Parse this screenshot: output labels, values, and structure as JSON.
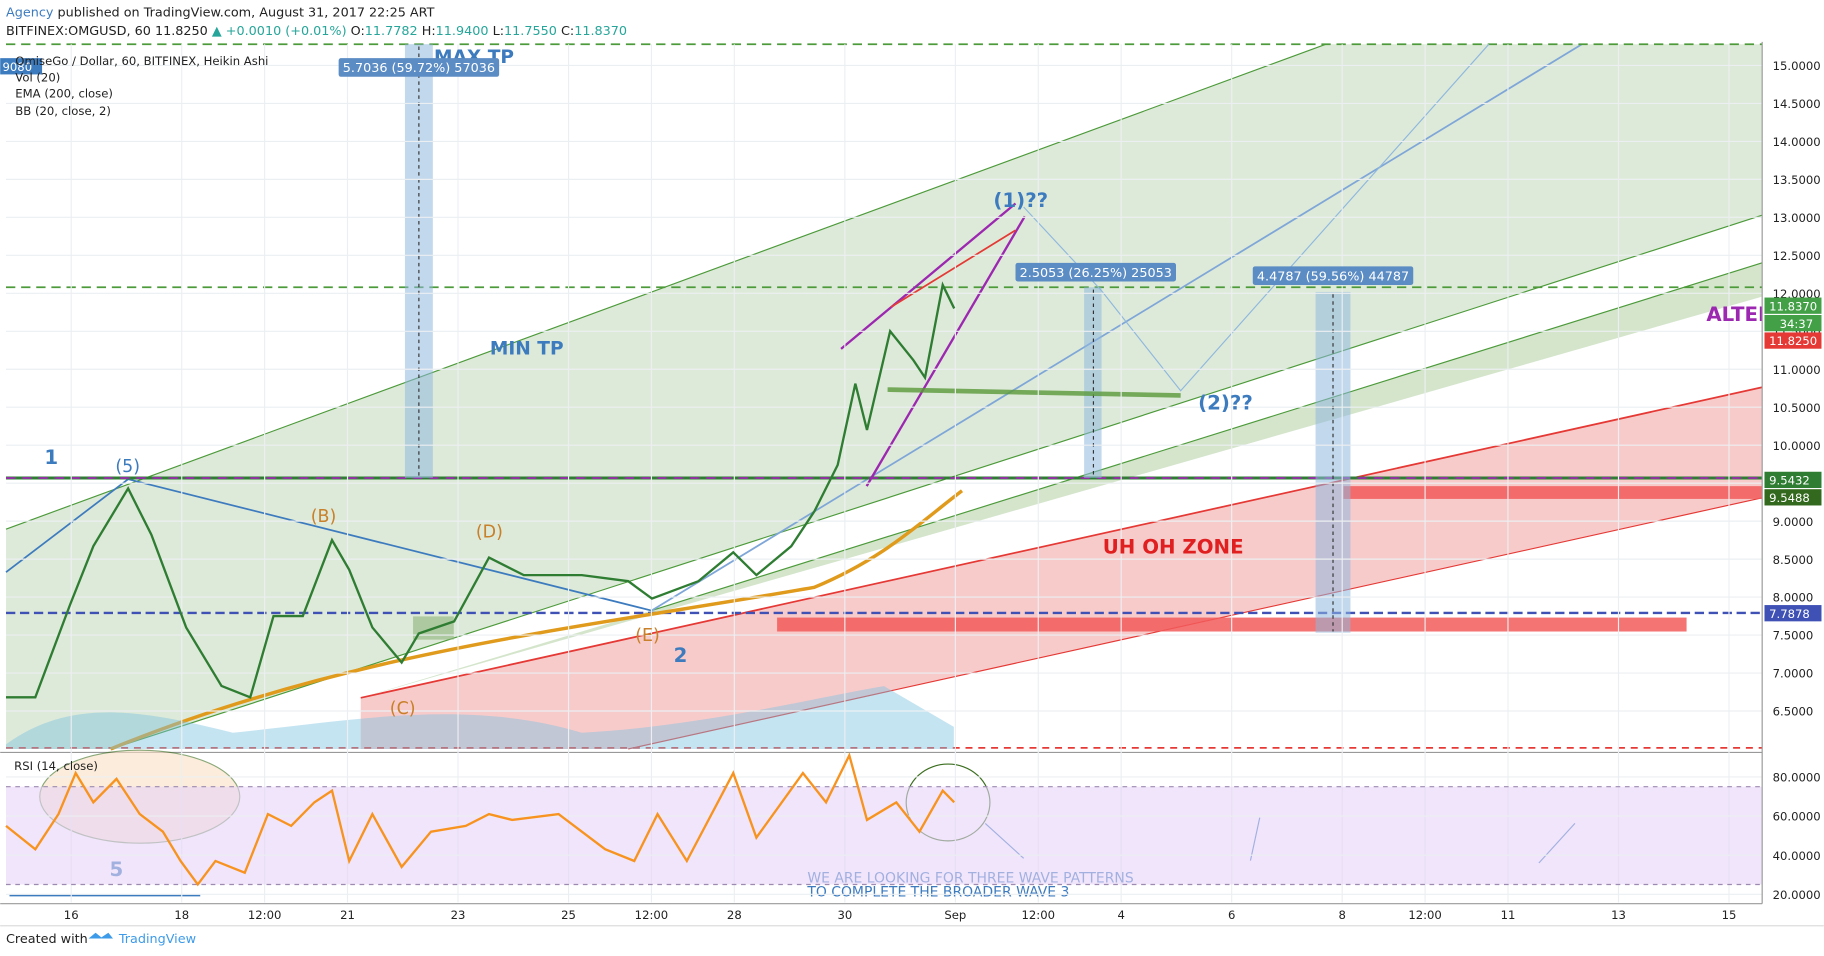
{
  "header": {
    "author": "Agency",
    "published": "published on TradingView.com, August 31, 2017 22:25 ART",
    "symbol": "BITFINEX:OMGUSD, 60",
    "last": "11.8250",
    "change": "▲ +0.0010 (+0.01%)",
    "ohlc": [
      {
        "key": "O:",
        "value": "11.7782"
      },
      {
        "key": "H:",
        "value": "11.9400"
      },
      {
        "key": "L:",
        "value": "11.7550"
      },
      {
        "key": "C:",
        "value": "11.8370"
      }
    ]
  },
  "legend_badge": "9080",
  "legend": [
    "OmiseGo / Dollar, 60, BITFINEX, Heikin Ashi",
    "Vol (20)",
    "EMA (200, close)",
    "BB (20, close, 2)"
  ],
  "chart_data": [
    {
      "type": "line",
      "color": "#2e7d32",
      "x": [
        14.82,
        15.35,
        15.98,
        16.4,
        17.03,
        17.45,
        18.08,
        18.72,
        19.24,
        19.66,
        20.19,
        20.72,
        21.03,
        21.45,
        21.98,
        22.29,
        22.93,
        23.56,
        24.19,
        25.24,
        26.08,
        26.51,
        27.35,
        27.98,
        28.4,
        29.03,
        29.45,
        29.87,
        30.19,
        30.4,
        30.82,
        31.24,
        31.45,
        31.77,
        31.98
      ],
      "values": [
        6.68,
        6.68,
        7.9,
        8.67,
        9.43,
        8.82,
        7.6,
        6.83,
        6.68,
        7.75,
        7.75,
        8.75,
        8.36,
        7.6,
        7.14,
        7.52,
        7.68,
        8.52,
        8.29,
        8.29,
        8.21,
        7.98,
        8.21,
        8.59,
        8.29,
        8.67,
        9.13,
        9.74,
        10.81,
        10.2,
        11.5,
        11.12,
        10.89,
        12.11,
        11.8
      ],
      "xlim": [
        14.82,
        46.6
      ],
      "ylim": [
        6.0,
        15.28
      ],
      "xticks": [
        16,
        18,
        {
          "value": 19.5,
          "label": "12:00"
        },
        21,
        23,
        25,
        {
          "value": 26.5,
          "label": "12:00"
        },
        28,
        30,
        {
          "value": 32,
          "label": "Sep"
        },
        {
          "value": 33.5,
          "label": "12:00"
        },
        {
          "value": 35,
          "label": "4"
        },
        {
          "value": 37,
          "label": "6"
        },
        {
          "value": 39,
          "label": "8"
        },
        {
          "value": 40.5,
          "label": "12:00"
        },
        {
          "value": 42,
          "label": "11"
        },
        {
          "value": 44,
          "label": "13"
        },
        {
          "value": 46,
          "label": "15"
        }
      ],
      "yticks": [
        {
          "value": 6.5,
          "label": "6.5000"
        },
        {
          "value": 7,
          "label": "7.0000"
        },
        {
          "value": 7.5,
          "label": "7.5000"
        },
        {
          "value": 8,
          "label": "8.0000"
        },
        {
          "value": 8.5,
          "label": "8.5000"
        },
        {
          "value": 9,
          "label": "9.0000"
        },
        {
          "value": 9.5,
          "label": "9.5000"
        },
        {
          "value": 10,
          "label": "10.0000"
        },
        {
          "value": 10.5,
          "label": "10.5000"
        },
        {
          "value": 11,
          "label": "11.0000"
        },
        {
          "value": 11.5,
          "label": "11.5000"
        },
        {
          "value": 12,
          "label": "12.0000"
        },
        {
          "value": 12.5,
          "label": "12.5000"
        },
        {
          "value": 13,
          "label": "13.0000"
        },
        {
          "value": 13.5,
          "label": "13.5000"
        },
        {
          "value": 14,
          "label": "14.0000"
        },
        {
          "value": 14.5,
          "label": "14.5000"
        },
        {
          "value": 15,
          "label": "15.0000"
        }
      ],
      "price_labels": [
        {
          "value": 11.837,
          "label": "11.8370",
          "color": "#43a047"
        },
        {
          "value": 11.825,
          "label": "11.8250",
          "color": "#e53935"
        },
        {
          "value": 9.5432,
          "label": "9.5432",
          "color": "#2e7d32"
        },
        {
          "value": 9.5488,
          "label": "9.5488",
          "color": "#33691e"
        },
        {
          "value": 7.7878,
          "label": "7.7878",
          "color": "#3f51b5"
        }
      ],
      "countdown": "34:37",
      "annotations": [
        {
          "text": "MAX TP",
          "color": "#3d7bbf"
        },
        {
          "text": "MIN TP",
          "color": "#3d7bbf"
        },
        {
          "text": "(1)??",
          "color": "#3d7bbf"
        },
        {
          "text": "(2)??",
          "color": "#3d7bbf"
        },
        {
          "text": "UH OH ZONE",
          "color": "#e02020"
        },
        {
          "text": "ALTER",
          "color": "#9c27b0"
        },
        {
          "text": "1",
          "color": "#3d7bbf"
        },
        {
          "text": "(5)",
          "color": "#3d7bbf"
        },
        {
          "text": "(B)",
          "color": "#c8802a"
        },
        {
          "text": "(D)",
          "color": "#c8802a"
        },
        {
          "text": "(C)",
          "color": "#c8802a"
        },
        {
          "text": "(E)",
          "color": "#c8802a"
        },
        {
          "text": "2",
          "color": "#3d7bbf"
        },
        {
          "text": "5",
          "color": "#3d7bbf"
        },
        {
          "text": "WE ARE LOOKING FOR THREE WAVE PATTERNS",
          "color": "#3d7bbf"
        },
        {
          "text": "TO COMPLETE THE BROADER WAVE 3",
          "color": "#3d7bbf"
        }
      ],
      "measures": [
        "5.7036 (59.72%) 57036",
        "2.5053 (26.25%) 25053",
        "4.4787 (59.56%) 44787"
      ]
    },
    {
      "type": "line",
      "title": "RSI (14, close)",
      "color": "#f7931e",
      "x": [
        14.82,
        15.35,
        15.77,
        16.08,
        16.4,
        16.82,
        17.24,
        17.66,
        17.98,
        18.29,
        18.61,
        19.14,
        19.56,
        19.98,
        20.4,
        20.72,
        21.03,
        21.45,
        21.98,
        22.51,
        23.14,
        23.56,
        23.98,
        24.82,
        25.66,
        26.19,
        26.61,
        27.14,
        27.98,
        28.4,
        29.24,
        29.66,
        30.08,
        30.4,
        30.93,
        31.35,
        31.77,
        31.98
      ],
      "values": [
        55,
        43,
        61,
        82,
        67,
        79,
        61,
        52,
        37,
        25,
        37,
        31,
        61,
        55,
        67,
        73,
        37,
        61,
        34,
        52,
        55,
        61,
        58,
        61,
        43,
        37,
        61,
        37,
        82,
        49,
        82,
        67,
        91,
        58,
        67,
        52,
        73,
        67
      ],
      "xlim": [
        14.82,
        46.6
      ],
      "ylim": [
        15.8,
        91.9
      ],
      "yticks": [
        {
          "value": 20,
          "label": "20.0000"
        },
        {
          "value": 40,
          "label": "40.0000"
        },
        {
          "value": 60,
          "label": "60.0000"
        },
        {
          "value": 80,
          "label": "80.0000"
        }
      ],
      "band": [
        25,
        75
      ]
    }
  ],
  "footer": {
    "created": "Created with",
    "brand": "TradingView"
  }
}
